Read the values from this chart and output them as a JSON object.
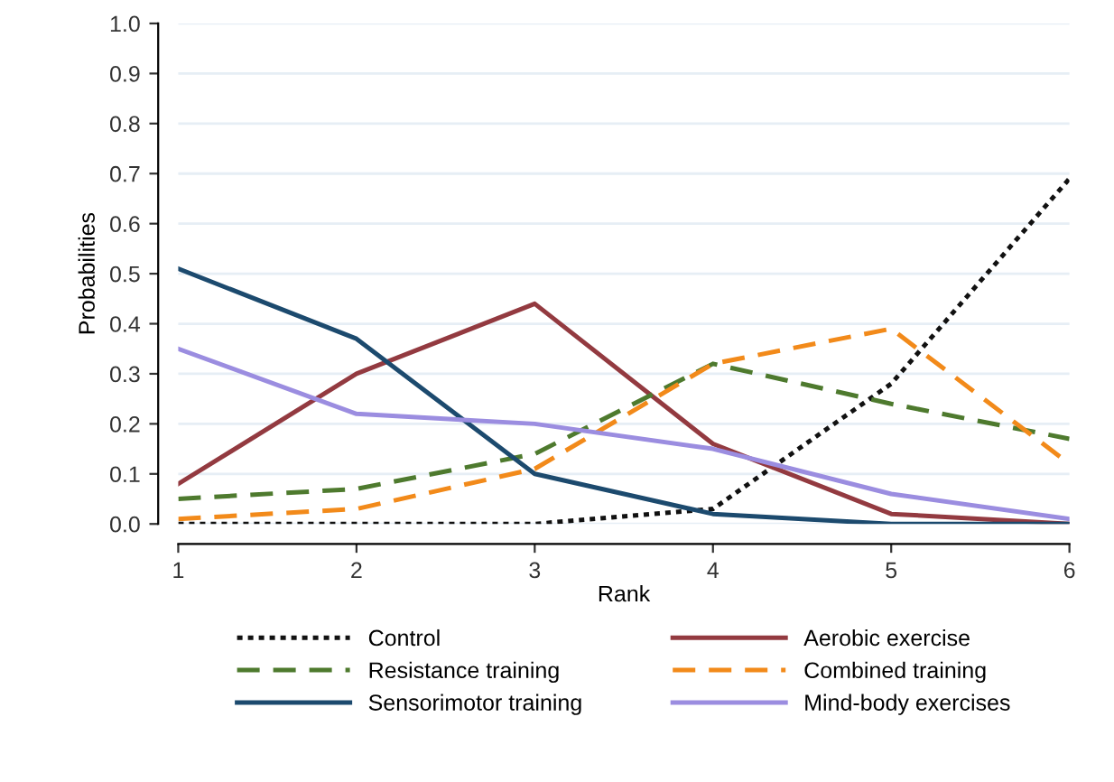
{
  "chart_data": {
    "type": "line",
    "xlabel": "Rank",
    "ylabel": "Probabilities",
    "x": [
      1,
      2,
      3,
      4,
      5,
      6
    ],
    "xlim": [
      1,
      6
    ],
    "xticks": [
      1,
      2,
      3,
      4,
      5,
      6
    ],
    "ylim": [
      0,
      1
    ],
    "yticks": [
      {
        "value": 0,
        "label": "0.0"
      },
      0.1,
      0.2,
      0.3,
      0.4,
      0.5,
      0.6,
      0.7,
      0.8,
      0.9,
      {
        "value": 1,
        "label": "1.0"
      }
    ],
    "grid": "y",
    "legend": "bottom",
    "marker": "none",
    "series": [
      {
        "name": "Control",
        "color": "#111111",
        "line_style": "dotted",
        "values": [
          0,
          0,
          0,
          0.03,
          0.28,
          0.69
        ]
      },
      {
        "name": "Aerobic exercise",
        "color": "#933a40",
        "line_style": "solid",
        "values": [
          0.08,
          0.3,
          0.44,
          0.16,
          0.02,
          0
        ]
      },
      {
        "name": "Resistance training",
        "color": "#4e7a2e",
        "line_style": "dashed",
        "values": [
          0.05,
          0.07,
          0.14,
          0.32,
          0.24,
          0.17
        ]
      },
      {
        "name": "Combined training",
        "color": "#f28a1a",
        "line_style": "dashed",
        "values": [
          0.01,
          0.03,
          0.11,
          0.32,
          0.39,
          0.12
        ]
      },
      {
        "name": "Sensorimotor training",
        "color": "#1c4a6e",
        "line_style": "solid",
        "values": [
          0.51,
          0.37,
          0.1,
          0.02,
          0,
          0
        ]
      },
      {
        "name": "Mind-body exercises",
        "color": "#9b8de0",
        "line_style": "solid",
        "values": [
          0.35,
          0.22,
          0.2,
          0.15,
          0.06,
          0.01
        ]
      }
    ]
  }
}
